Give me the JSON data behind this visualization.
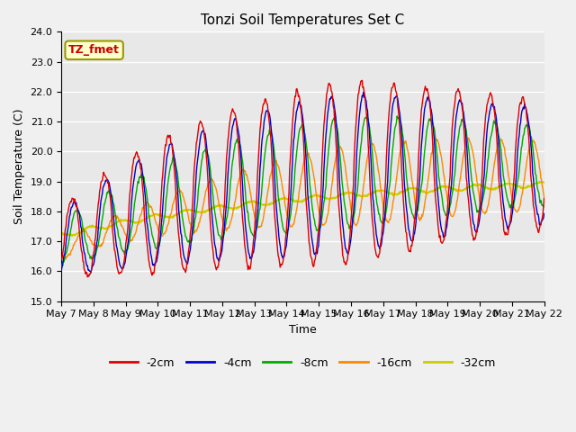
{
  "title": "Tonzi Soil Temperatures Set C",
  "xlabel": "Time",
  "ylabel": "Soil Temperature (C)",
  "ylim": [
    15.0,
    24.0
  ],
  "yticks": [
    15.0,
    16.0,
    17.0,
    18.0,
    19.0,
    20.0,
    21.0,
    22.0,
    23.0,
    24.0
  ],
  "xtick_labels": [
    "May 7",
    "May 8",
    "May 9",
    "May 10",
    "May 11",
    "May 12",
    "May 13",
    "May 14",
    "May 15",
    "May 16",
    "May 17",
    "May 18",
    "May 19",
    "May 20",
    "May 21",
    "May 22"
  ],
  "annotation_text": "TZ_fmet",
  "annotation_color": "#cc0000",
  "annotation_bg": "#ffffcc",
  "annotation_border": "#999900",
  "series_colors": [
    "#dd0000",
    "#0000cc",
    "#00aa00",
    "#ff8800",
    "#cccc00"
  ],
  "series_labels": [
    "-2cm",
    "-4cm",
    "-8cm",
    "-16cm",
    "-32cm"
  ],
  "plot_bg_color": "#e8e8e8",
  "fig_bg_color": "#f0f0f0",
  "grid_color": "#ffffff",
  "title_fontsize": 11,
  "axis_label_fontsize": 9,
  "tick_fontsize": 8,
  "legend_fontsize": 9
}
